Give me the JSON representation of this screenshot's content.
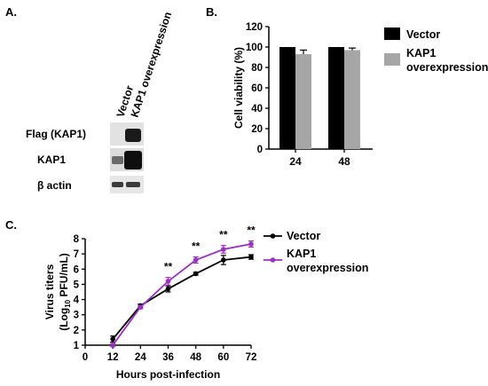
{
  "panels": {
    "a": {
      "label": "A."
    },
    "b": {
      "label": "B."
    },
    "c": {
      "label": "C."
    }
  },
  "blot": {
    "lanes": [
      "Vector",
      "KAP1 overexpression"
    ],
    "rows": [
      "Flag (KAP1)",
      "KAP1",
      "β actin"
    ]
  },
  "chart_data": [
    {
      "type": "bar",
      "panel": "B",
      "categories": [
        "24",
        "48"
      ],
      "series": [
        {
          "name": "Vector",
          "color": "#000000",
          "values": [
            100,
            100
          ],
          "errors": [
            0,
            0
          ]
        },
        {
          "name": "KAP1 overexpression",
          "color": "#a6a6a6",
          "values": [
            93,
            97
          ],
          "errors": [
            4,
            2
          ]
        }
      ],
      "ylabel": "Cell viability (%)",
      "xlabel": "",
      "ylim": [
        0,
        120
      ],
      "yticks": [
        0,
        20,
        40,
        60,
        80,
        100,
        120
      ],
      "legend": [
        "Vector",
        "KAP1",
        "overexpression"
      ],
      "legend_placement": "right"
    },
    {
      "type": "line",
      "panel": "C",
      "x": [
        12,
        24,
        36,
        48,
        60,
        72
      ],
      "series": [
        {
          "name": "Vector",
          "color": "#000000",
          "values": [
            1.4,
            3.6,
            4.7,
            5.7,
            6.6,
            6.8
          ],
          "errors": [
            0.2,
            0.1,
            0.2,
            0.1,
            0.3,
            0.15
          ]
        },
        {
          "name": "KAP1 overexpression",
          "color": "#9b2fc4",
          "values": [
            1.0,
            3.5,
            5.2,
            6.6,
            7.3,
            7.65
          ],
          "errors": [
            0.1,
            0.1,
            0.25,
            0.2,
            0.25,
            0.2
          ]
        }
      ],
      "significance": [
        {
          "x": 36,
          "text": "**"
        },
        {
          "x": 48,
          "text": "**"
        },
        {
          "x": 60,
          "text": "**"
        },
        {
          "x": 72,
          "text": "**"
        }
      ],
      "xlabel": "Hours post-infection",
      "ylabel_line1": "Virus titers",
      "ylabel_line2_pre": "(Log",
      "ylabel_line2_sub": "10",
      "ylabel_line2_post": " PFU/mL)",
      "xlim": [
        0,
        72
      ],
      "ylim": [
        1,
        8
      ],
      "xticks": [
        0,
        12,
        24,
        36,
        48,
        60,
        72
      ],
      "yticks": [
        1,
        2,
        3,
        4,
        5,
        6,
        7,
        8
      ],
      "legend": [
        "Vector",
        "KAP1",
        "overexpression"
      ],
      "legend_placement": "right"
    }
  ]
}
